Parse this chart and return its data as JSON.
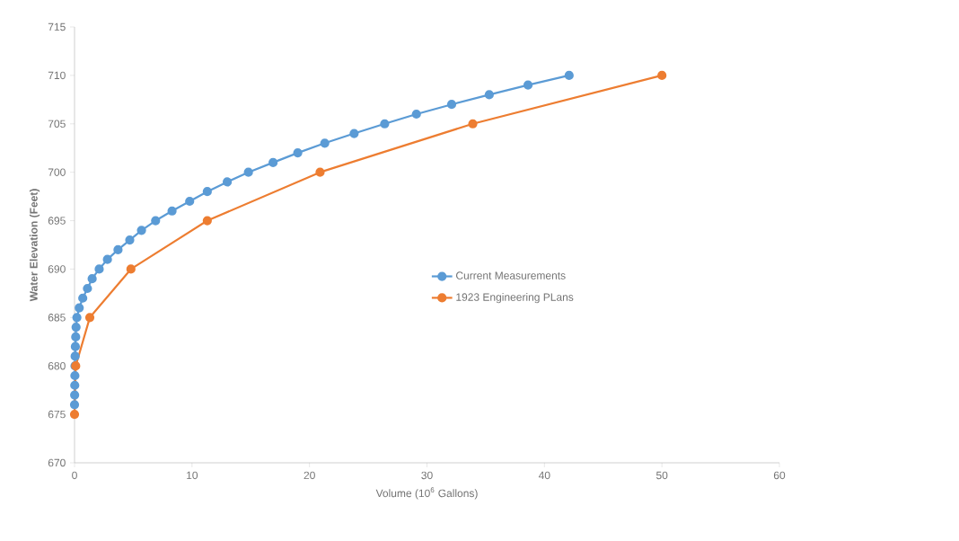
{
  "chart_data": {
    "type": "line",
    "xlabel": "Volume (10$^{6}$ Gallons)",
    "ylabel": "Water Elevation (Feet)",
    "xlim": [
      0,
      60
    ],
    "xticks": [
      0,
      10,
      20,
      30,
      40,
      50,
      60
    ],
    "ylim": [
      670,
      715
    ],
    "yticks": [
      670,
      675,
      680,
      685,
      690,
      695,
      700,
      705,
      710,
      715
    ],
    "marker": "circle",
    "line_style": "solid",
    "grid": false,
    "legend": "center",
    "series": [
      {
        "name": "Current Measurements",
        "color": "#5b9bd5",
        "x": [
          0,
          0.01,
          0.02,
          0.03,
          0.04,
          0.05,
          0.07,
          0.1,
          0.13,
          0.2,
          0.4,
          0.7,
          1.1,
          1.5,
          2.1,
          2.8,
          3.7,
          4.7,
          5.7,
          6.9,
          8.3,
          9.8,
          11.3,
          13.0,
          14.8,
          16.9,
          19.0,
          21.3,
          23.8,
          26.4,
          29.1,
          32.1,
          35.3,
          38.6,
          42.1
        ],
        "values": [
          676,
          677,
          678,
          679,
          680,
          681,
          682,
          683,
          684,
          685,
          686,
          687,
          688,
          689,
          690,
          691,
          692,
          693,
          694,
          695,
          696,
          697,
          698,
          699,
          700,
          701,
          702,
          703,
          704,
          705,
          706,
          707,
          708,
          709,
          710
        ]
      },
      {
        "name": "1923 Engineering PLans",
        "color": "#ed7d31",
        "x": [
          0,
          0.1,
          1.3,
          4.8,
          11.3,
          20.9,
          33.9,
          50.0
        ],
        "values": [
          675,
          680,
          685,
          690,
          695,
          700,
          705,
          710
        ]
      }
    ]
  }
}
